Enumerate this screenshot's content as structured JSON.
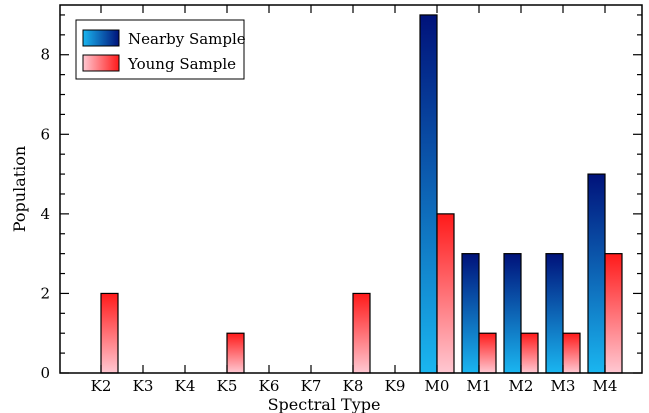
{
  "chart_data": {
    "type": "bar",
    "categories": [
      "K2",
      "K3",
      "K4",
      "K5",
      "K6",
      "K7",
      "K8",
      "K9",
      "M0",
      "M1",
      "M2",
      "M3",
      "M4"
    ],
    "series": [
      {
        "name": "Nearby Sample",
        "values": [
          0,
          0,
          0,
          0,
          0,
          0,
          0,
          0,
          9,
          3,
          3,
          3,
          5
        ],
        "color_top": "#00127a",
        "color_bottom": "#1ab6f0"
      },
      {
        "name": "Young Sample",
        "values": [
          2,
          0,
          0,
          1,
          0,
          0,
          2,
          0,
          4,
          1,
          1,
          1,
          3
        ],
        "color_top": "#ff1a1a",
        "color_bottom": "#ffc8d2"
      }
    ],
    "xlabel": "Spectral Type",
    "ylabel": "Population",
    "ylim": [
      0,
      9.25
    ],
    "yticks": [
      "0",
      "2",
      "4",
      "6",
      "8"
    ],
    "legend_position": "top-left",
    "grid": false
  }
}
